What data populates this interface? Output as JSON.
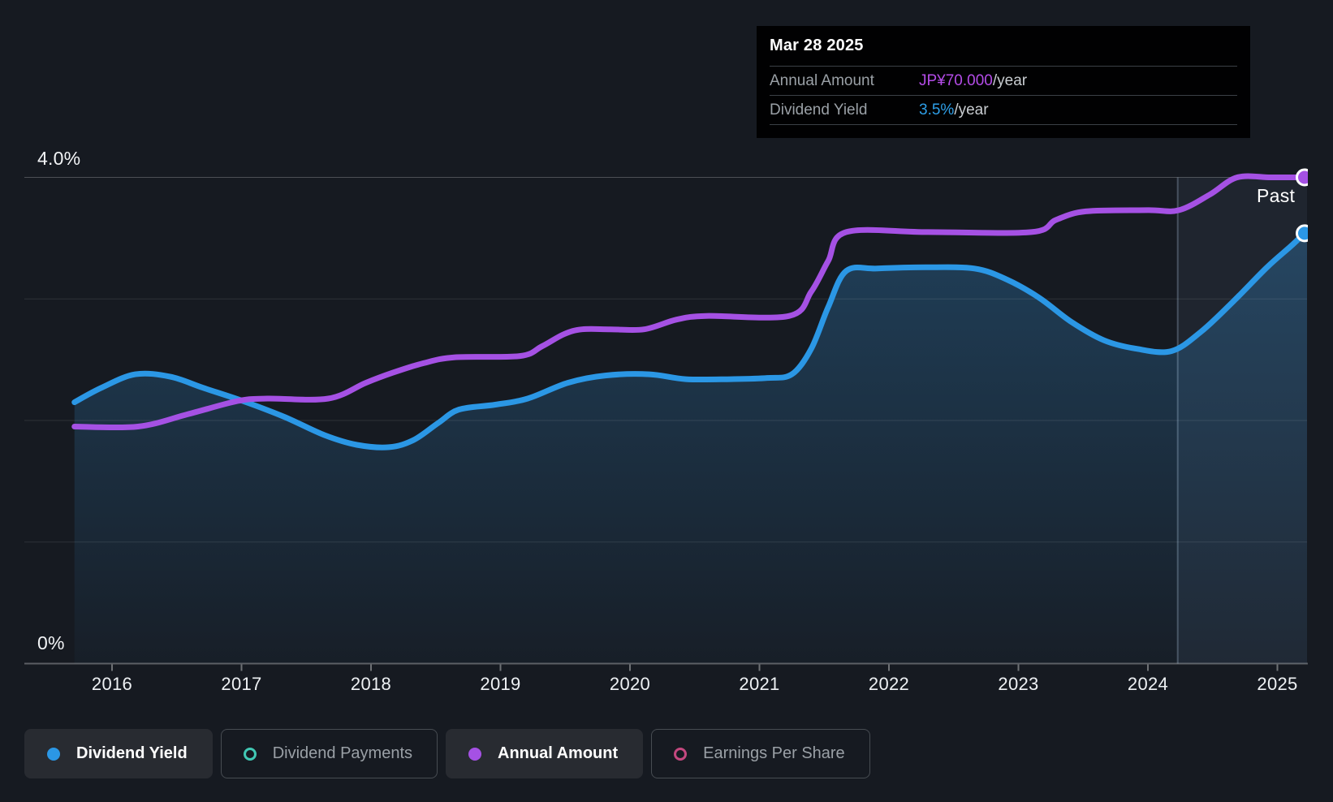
{
  "colors": {
    "background": "#161a21",
    "blue": "#2B97E5",
    "purple": "#A551E4",
    "teal": "#41C8B4",
    "pink": "#C4487F",
    "tooltip_blue": "#2E9FE8",
    "tooltip_purple": "#B44CE8",
    "grid_major": "rgba(255,255,255,0.24)",
    "grid_minor": "rgba(255,255,255,0.10)",
    "axis_line": "rgba(255,255,255,0.30)",
    "tick_mark": "rgba(255,255,255,0.38)",
    "divider_line": "rgba(190,215,240,0.28)",
    "highlight_band": "rgba(150,190,235,0.07)",
    "area_top": "rgba(52,140,205,0.32)",
    "area_bottom": "rgba(52,140,205,0.04)",
    "marker_stroke": "#ffffff"
  },
  "tooltip": {
    "date": "Mar 28 2025",
    "rows": [
      {
        "label": "Annual Amount",
        "value": "JP¥70.000",
        "suffix": "/year",
        "color_key": "tooltip_purple"
      },
      {
        "label": "Dividend Yield",
        "value": "3.5%",
        "suffix": "/year",
        "color_key": "tooltip_blue"
      }
    ]
  },
  "past_label": "Past",
  "y_axis": {
    "top_label": "4.0%",
    "bottom_label": "0%"
  },
  "x_axis": {
    "ticks": [
      "2016",
      "2017",
      "2018",
      "2019",
      "2020",
      "2021",
      "2022",
      "2023",
      "2024",
      "2025"
    ]
  },
  "legend": [
    {
      "label": "Dividend Yield",
      "marker": "filled",
      "color_key": "blue",
      "active": true
    },
    {
      "label": "Dividend Payments",
      "marker": "outline",
      "color_key": "teal",
      "active": false
    },
    {
      "label": "Annual Amount",
      "marker": "filled",
      "color_key": "purple",
      "active": true
    },
    {
      "label": "Earnings Per Share",
      "marker": "outline",
      "color_key": "pink",
      "active": false
    }
  ],
  "chart_data": {
    "type": "line",
    "title": "Dividend yield and annual amount history",
    "x_range": [
      2015.71,
      2025.23
    ],
    "y_axis": {
      "min": 0,
      "max": 4,
      "unit": "%",
      "gridlines_pct": [
        4,
        3,
        2,
        1
      ],
      "labeled": {
        "4": "4.0%",
        "0": "0%"
      }
    },
    "grid": true,
    "legend_position": "bottom",
    "divider_year": 2024.23,
    "highlight_region": "from divider to right edge (last year, labeled Past)",
    "series": [
      {
        "name": "Dividend Yield",
        "color_key": "blue",
        "unit": "%",
        "area_fill": true,
        "end_value_label": "3.5%/year",
        "points": [
          [
            2015.71,
            2.15
          ],
          [
            2015.92,
            2.27
          ],
          [
            2016.18,
            2.38
          ],
          [
            2016.45,
            2.36
          ],
          [
            2016.7,
            2.27
          ],
          [
            2017.01,
            2.16
          ],
          [
            2017.33,
            2.03
          ],
          [
            2017.64,
            1.88
          ],
          [
            2017.89,
            1.8
          ],
          [
            2018.14,
            1.78
          ],
          [
            2018.33,
            1.84
          ],
          [
            2018.52,
            1.98
          ],
          [
            2018.68,
            2.09
          ],
          [
            2018.96,
            2.13
          ],
          [
            2019.21,
            2.18
          ],
          [
            2019.52,
            2.31
          ],
          [
            2019.81,
            2.37
          ],
          [
            2020.15,
            2.38
          ],
          [
            2020.43,
            2.34
          ],
          [
            2020.78,
            2.34
          ],
          [
            2021.06,
            2.35
          ],
          [
            2021.25,
            2.38
          ],
          [
            2021.4,
            2.59
          ],
          [
            2021.53,
            2.93
          ],
          [
            2021.67,
            3.23
          ],
          [
            2021.91,
            3.25
          ],
          [
            2022.28,
            3.26
          ],
          [
            2022.66,
            3.25
          ],
          [
            2022.91,
            3.16
          ],
          [
            2023.16,
            3.01
          ],
          [
            2023.41,
            2.81
          ],
          [
            2023.66,
            2.66
          ],
          [
            2023.91,
            2.59
          ],
          [
            2024.18,
            2.57
          ],
          [
            2024.41,
            2.73
          ],
          [
            2024.66,
            2.98
          ],
          [
            2024.92,
            3.26
          ],
          [
            2025.1,
            3.43
          ],
          [
            2025.21,
            3.54
          ]
        ]
      },
      {
        "name": "Annual Amount",
        "color_key": "purple",
        "unit": "plotted on hidden JP¥ scale; values below are chart-vertical positions in % of yield axis",
        "area_fill": false,
        "end_value_label": "JP¥70.000/year",
        "points": [
          [
            2015.71,
            1.95
          ],
          [
            2016.2,
            1.95
          ],
          [
            2016.58,
            2.05
          ],
          [
            2016.97,
            2.16
          ],
          [
            2017.2,
            2.18
          ],
          [
            2017.67,
            2.18
          ],
          [
            2017.96,
            2.31
          ],
          [
            2018.16,
            2.39
          ],
          [
            2018.4,
            2.47
          ],
          [
            2018.65,
            2.52
          ],
          [
            2019.15,
            2.53
          ],
          [
            2019.32,
            2.61
          ],
          [
            2019.49,
            2.71
          ],
          [
            2019.63,
            2.75
          ],
          [
            2019.85,
            2.75
          ],
          [
            2020.11,
            2.75
          ],
          [
            2020.36,
            2.83
          ],
          [
            2020.59,
            2.86
          ],
          [
            2021.23,
            2.86
          ],
          [
            2021.4,
            3.06
          ],
          [
            2021.53,
            3.31
          ],
          [
            2021.67,
            3.55
          ],
          [
            2022.3,
            3.55
          ],
          [
            2023.1,
            3.55
          ],
          [
            2023.29,
            3.65
          ],
          [
            2023.52,
            3.72
          ],
          [
            2024.0,
            3.73
          ],
          [
            2024.24,
            3.73
          ],
          [
            2024.48,
            3.86
          ],
          [
            2024.69,
            4.0
          ],
          [
            2024.95,
            4.0
          ],
          [
            2025.21,
            4.0
          ]
        ]
      }
    ]
  }
}
